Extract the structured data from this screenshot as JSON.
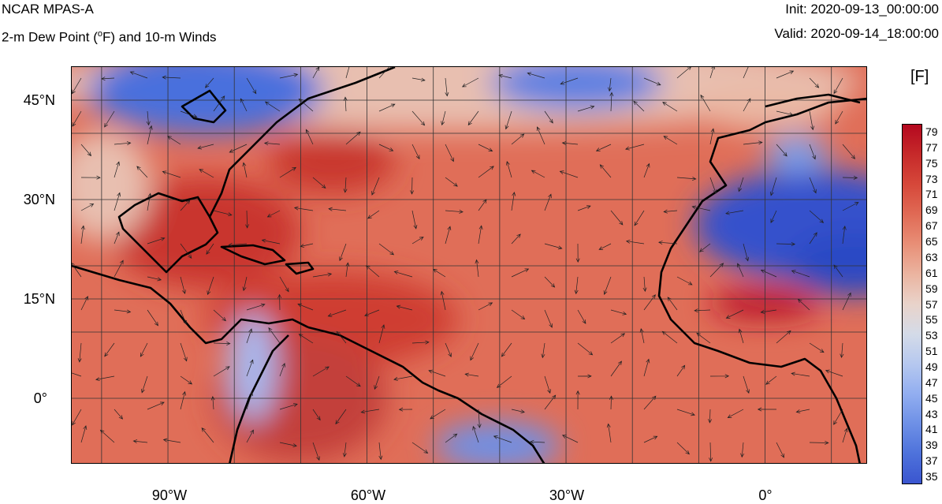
{
  "header": {
    "title": "NCAR MPAS-A",
    "subtitle_pre": "2-m Dew Point (",
    "subtitle_deg": "o",
    "subtitle_post": "F) and 10-m Winds",
    "init": "Init: 2020-09-13_00:00:00",
    "valid": "Valid: 2020-09-14_18:00:00"
  },
  "map": {
    "lat_labels": [
      "45°N",
      "30°N",
      "15°N",
      "0°"
    ],
    "lon_labels": [
      "90°W",
      "60°W",
      "30°W",
      "0°"
    ],
    "extent": {
      "lon": [
        -104.5,
        15.5
      ],
      "lat": [
        -10,
        50
      ]
    },
    "colors": {
      "warm": "#cc2b2b",
      "mid": "#e6735a",
      "neutral": "#e8d6ce",
      "cold": "#3d5cd6",
      "land_line": "#000000"
    }
  },
  "colorbar": {
    "units": "[F]",
    "ticks": [
      "79",
      "77",
      "75",
      "73",
      "71",
      "69",
      "67",
      "65",
      "63",
      "61",
      "59",
      "57",
      "55",
      "53",
      "51",
      "49",
      "47",
      "45",
      "43",
      "41",
      "39",
      "37",
      "35"
    ],
    "top_color": "#c8102e",
    "bottom_color": "#3a4cc0"
  }
}
